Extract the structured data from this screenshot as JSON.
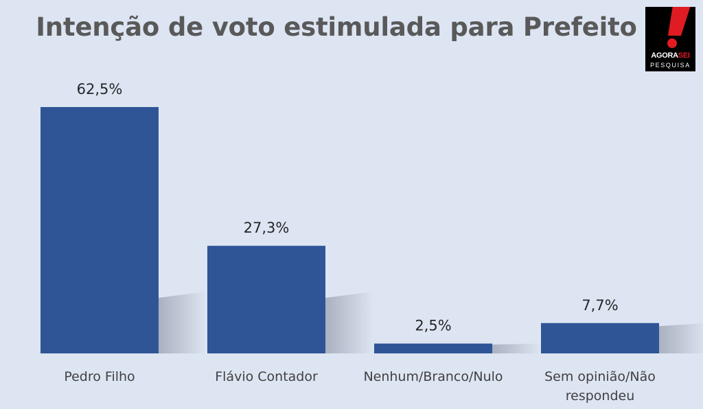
{
  "chart_data": {
    "type": "bar",
    "title": "Intenção de voto estimulada para Prefeito",
    "categories": [
      "Pedro Filho",
      "Flávio Contador",
      "Nenhum/Branco/Nulo",
      "Sem opinião/Não respondeu"
    ],
    "values": [
      62.5,
      27.3,
      2.5,
      7.7
    ],
    "value_labels": [
      "62,5%",
      "27,3%",
      "2,5%",
      "7,7%"
    ],
    "unit": "%",
    "ylim": [
      0,
      62.5
    ],
    "grid": false,
    "legend": "none",
    "bar_color": "#2f5597"
  },
  "logo": {
    "brand_main": "AGORA",
    "brand_accent": "SEI",
    "subtitle": "PESQUISA",
    "accent_color": "#e01b22"
  }
}
